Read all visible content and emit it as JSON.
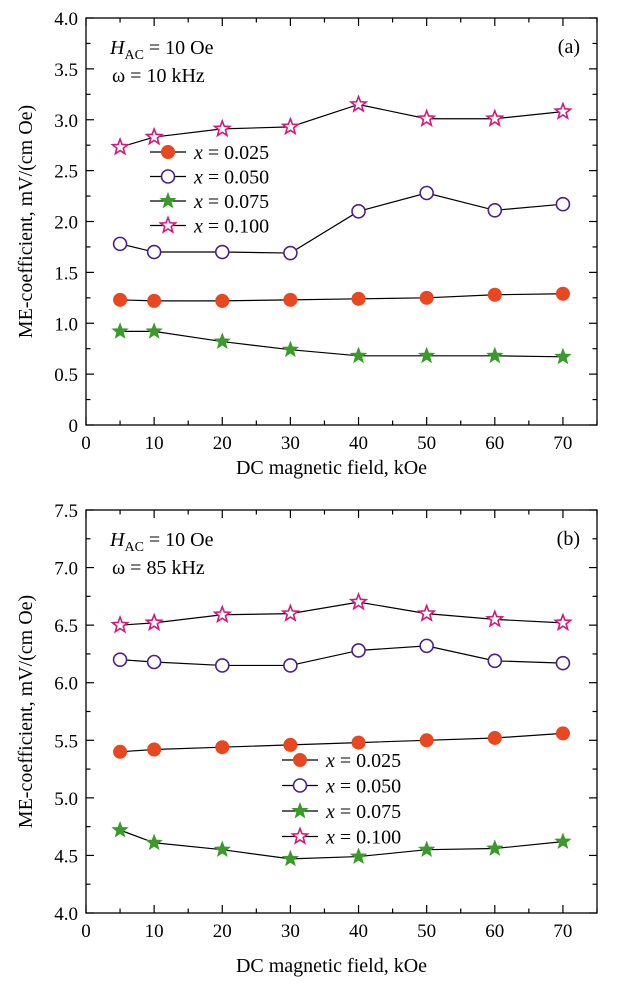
{
  "chart_data": [
    {
      "type": "line",
      "panel_label": "(a)",
      "annotations": [
        {
          "symbol": "H",
          "subscript": "AC",
          "text": " = 10 Oe"
        },
        {
          "symbol": "ω",
          "subscript": "",
          "text": " = 10 kHz"
        }
      ],
      "xlabel": "DC magnetic field, kOe",
      "ylabel": "ME-coefficient, mV/(cm Oe)",
      "xlim": [
        0,
        75
      ],
      "ylim": [
        0,
        4.0
      ],
      "xticks": [
        "0",
        "10",
        "20",
        "30",
        "40",
        "50",
        "60",
        "70"
      ],
      "yticks": [
        "0",
        "0.5",
        "1.0",
        "1.5",
        "2.0",
        "2.5",
        "3.0",
        "3.5",
        "4.0"
      ],
      "x": [
        5,
        10,
        20,
        30,
        40,
        50,
        60,
        70
      ],
      "series": [
        {
          "name": "x = 0.025",
          "var": "x",
          "rest": " = 0.025",
          "marker": "circle-filled",
          "color": "#e8471f",
          "values": [
            1.23,
            1.22,
            1.22,
            1.23,
            1.24,
            1.25,
            1.28,
            1.29
          ]
        },
        {
          "name": "x = 0.050",
          "var": "x",
          "rest": " = 0.050",
          "marker": "circle-open",
          "color": "#4a1f8c",
          "values": [
            1.78,
            1.7,
            1.7,
            1.69,
            2.1,
            2.28,
            2.11,
            2.17
          ]
        },
        {
          "name": "x = 0.075",
          "var": "x",
          "rest": " = 0.075",
          "marker": "star-filled",
          "color": "#3a9a2a",
          "values": [
            0.92,
            0.92,
            0.82,
            0.74,
            0.68,
            0.68,
            0.68,
            0.67
          ]
        },
        {
          "name": "x = 0.100",
          "var": "x",
          "rest": " = 0.100",
          "marker": "star-open",
          "color": "#d4177a",
          "values": [
            2.73,
            2.83,
            2.91,
            2.93,
            3.15,
            3.01,
            3.01,
            3.08
          ]
        }
      ]
    },
    {
      "type": "line",
      "panel_label": "(b)",
      "annotations": [
        {
          "symbol": "H",
          "subscript": "AC",
          "text": " = 10 Oe"
        },
        {
          "symbol": "ω",
          "subscript": "",
          "text": " = 85 kHz"
        }
      ],
      "xlabel": "DC magnetic field, kOe",
      "ylabel": "ME-coefficient, mV/(cm Oe)",
      "xlim": [
        0,
        75
      ],
      "ylim": [
        4.0,
        7.5
      ],
      "xticks": [
        "0",
        "10",
        "20",
        "30",
        "40",
        "50",
        "60",
        "70"
      ],
      "yticks": [
        "4.0",
        "4.5",
        "5.0",
        "5.5",
        "6.0",
        "6.5",
        "7.0",
        "7.5"
      ],
      "x": [
        5,
        10,
        20,
        30,
        40,
        50,
        60,
        70
      ],
      "series": [
        {
          "name": "x = 0.025",
          "var": "x",
          "rest": " = 0.025",
          "marker": "circle-filled",
          "color": "#e8471f",
          "values": [
            5.4,
            5.42,
            5.44,
            5.46,
            5.48,
            5.5,
            5.52,
            5.56
          ]
        },
        {
          "name": "x = 0.050",
          "var": "x",
          "rest": " = 0.050",
          "marker": "circle-open",
          "color": "#4a1f8c",
          "values": [
            6.2,
            6.18,
            6.15,
            6.15,
            6.28,
            6.32,
            6.19,
            6.17
          ]
        },
        {
          "name": "x = 0.075",
          "var": "x",
          "rest": " = 0.075",
          "marker": "star-filled",
          "color": "#3a9a2a",
          "values": [
            4.72,
            4.61,
            4.55,
            4.47,
            4.49,
            4.55,
            4.56,
            4.62
          ]
        },
        {
          "name": "x = 0.100",
          "var": "x",
          "rest": " = 0.100",
          "marker": "star-open",
          "color": "#d4177a",
          "values": [
            6.5,
            6.52,
            6.59,
            6.6,
            6.7,
            6.6,
            6.55,
            6.52
          ]
        }
      ]
    }
  ]
}
